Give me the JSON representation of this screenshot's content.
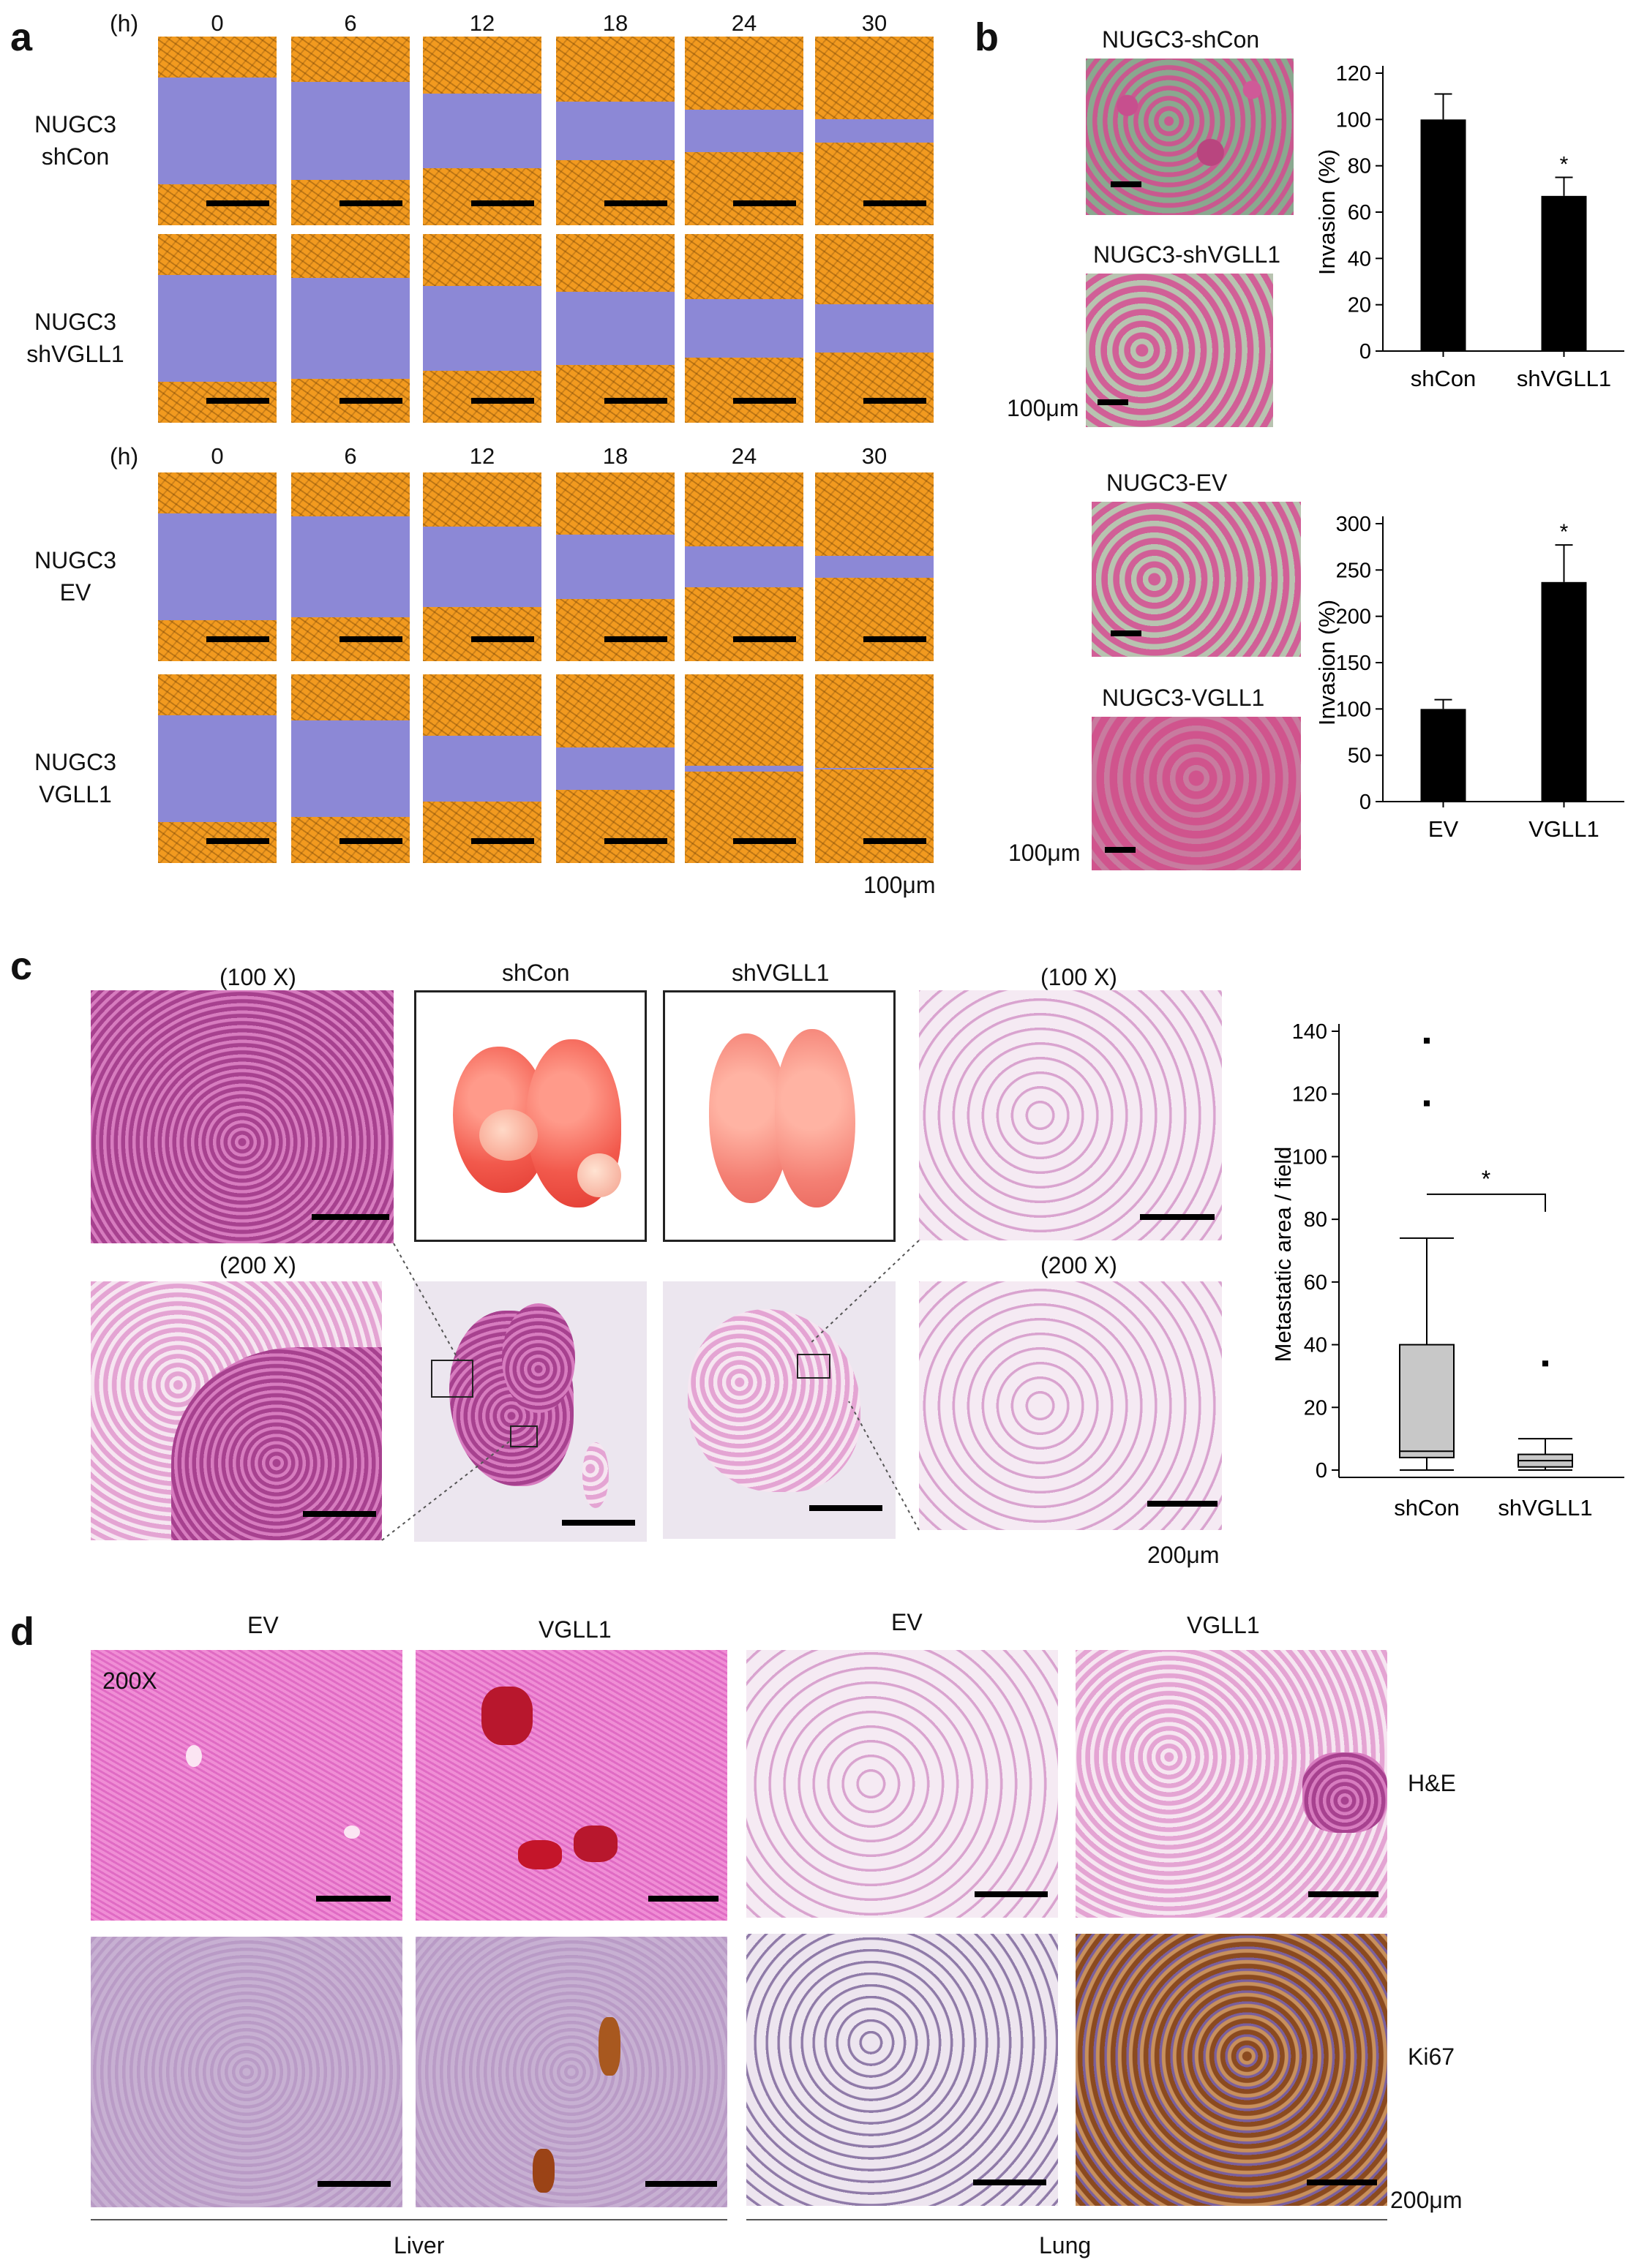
{
  "panels": {
    "a": {
      "label": "a",
      "hours_unit": "(h)",
      "time_points": [
        "0",
        "6",
        "12",
        "18",
        "24",
        "30"
      ],
      "rows_top": [
        {
          "line1": "NUGC3",
          "line2": "shCon",
          "closure": [
            0,
            0.08,
            0.3,
            0.45,
            0.6,
            0.78
          ]
        },
        {
          "line1": "NUGC3",
          "line2": "shVGLL1",
          "closure": [
            0,
            0.05,
            0.2,
            0.32,
            0.45,
            0.55
          ]
        }
      ],
      "rows_bottom": [
        {
          "line1": "NUGC3",
          "line2": "EV",
          "closure": [
            0,
            0.06,
            0.25,
            0.4,
            0.62,
            0.8
          ]
        },
        {
          "line1": "NUGC3",
          "line2": "VGLL1",
          "closure": [
            0,
            0.1,
            0.38,
            0.6,
            0.95,
            0.98
          ]
        }
      ],
      "scale": "100μm"
    },
    "b": {
      "label": "b",
      "img_labels": [
        "NUGC3-shCon",
        "NUGC3-shVGLL1",
        "NUGC3-EV",
        "NUGC3-VGLL1"
      ],
      "scale": "100μm"
    },
    "c": {
      "label": "c",
      "mag100": "(100 X)",
      "mag200": "(200 X)",
      "photo_labels": [
        "shCon",
        "shVGLL1"
      ],
      "scale": "200μm"
    },
    "d": {
      "label": "d",
      "cols": [
        "EV",
        "VGLL1",
        "EV",
        "VGLL1"
      ],
      "mag": "200X",
      "rows": [
        "H&E",
        "Ki67"
      ],
      "groups": [
        "Liver",
        "Lung"
      ],
      "scale": "200μm"
    }
  },
  "chart_data": [
    {
      "type": "bar",
      "categories": [
        "shCon",
        "shVGLL1"
      ],
      "values": [
        100,
        67
      ],
      "errors": [
        11,
        8
      ],
      "significance": [
        "",
        "*"
      ],
      "ylabel": "Invasion (%)",
      "ylim": [
        0,
        120
      ],
      "yticks": [
        0,
        20,
        40,
        60,
        80,
        100,
        120
      ],
      "color": "#000000"
    },
    {
      "type": "bar",
      "categories": [
        "EV",
        "VGLL1"
      ],
      "values": [
        100,
        237
      ],
      "errors": [
        10,
        40
      ],
      "significance": [
        "",
        "*"
      ],
      "ylabel": "Invasion (%)",
      "ylim": [
        0,
        300
      ],
      "yticks": [
        0,
        50,
        100,
        150,
        200,
        250,
        300
      ],
      "color": "#000000"
    },
    {
      "type": "box",
      "categories": [
        "shCon",
        "shVGLL1"
      ],
      "boxes": [
        {
          "whisker_low": 0,
          "q1": 4,
          "median": 6,
          "q3": 40,
          "whisker_high": 74,
          "outliers": [
            117,
            137
          ]
        },
        {
          "whisker_low": 0,
          "q1": 1,
          "median": 3,
          "q3": 5,
          "whisker_high": 10,
          "outliers": [
            34
          ]
        }
      ],
      "significance": "*",
      "ylabel": "Metastatic area / field",
      "ylim": [
        0,
        140
      ],
      "yticks": [
        0,
        20,
        40,
        60,
        80,
        100,
        120,
        140
      ],
      "box_color": "#c8c8c8"
    }
  ]
}
